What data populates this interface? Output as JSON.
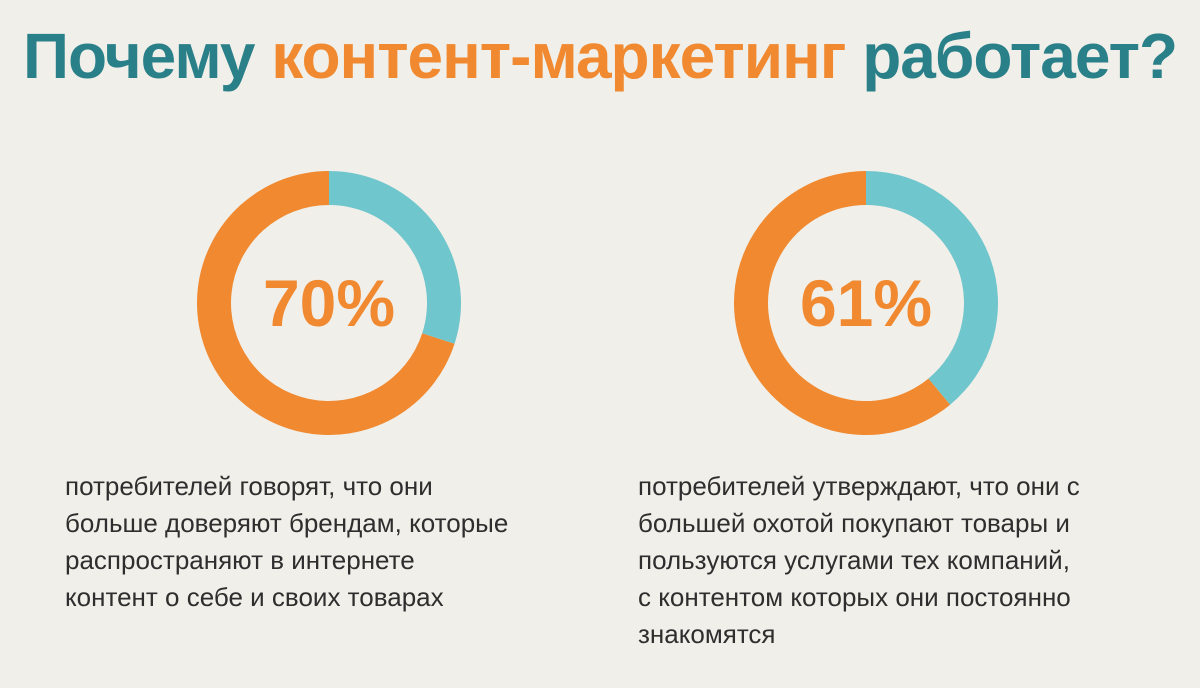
{
  "title": {
    "part1": "Почему",
    "part2": "контент-маркетинг",
    "part3": "работает?"
  },
  "colors": {
    "teal": "#2a8088",
    "orange": "#f0892f",
    "light_blue": "#6fc6cc",
    "background": "#f1efe9"
  },
  "chart_data": [
    {
      "type": "pie",
      "label": "70%",
      "slices": [
        {
          "value": 70,
          "color": "#f0892f"
        },
        {
          "value": 30,
          "color": "#6fc6cc"
        }
      ],
      "caption": [
        "потребителей говорят, что они",
        "больше доверяют брендам, которые",
        "распространяют в интернете",
        "контент о себе и своих товарах"
      ]
    },
    {
      "type": "pie",
      "label": "61%",
      "slices": [
        {
          "value": 61,
          "color": "#f0892f"
        },
        {
          "value": 39,
          "color": "#6fc6cc"
        }
      ],
      "caption": [
        "потребителей утверждают, что они с",
        "большей охотой покупают товары и",
        "пользуются услугами тех компаний,",
        "с контентом которых они постоянно",
        "знакомятся"
      ]
    }
  ]
}
